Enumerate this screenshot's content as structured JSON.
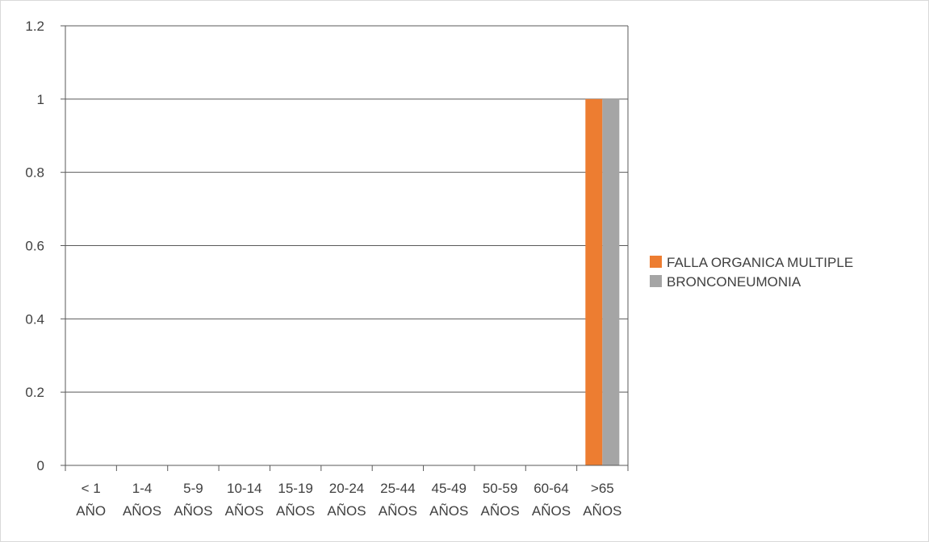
{
  "chart_data": {
    "type": "bar",
    "categories": [
      [
        "< 1",
        "AÑO"
      ],
      [
        "1-4",
        "AÑOS"
      ],
      [
        "5-9",
        "AÑOS"
      ],
      [
        "10-14",
        "AÑOS"
      ],
      [
        "15-19",
        "AÑOS"
      ],
      [
        "20-24",
        "AÑOS"
      ],
      [
        "25-44",
        "AÑOS"
      ],
      [
        "45-49",
        "AÑOS"
      ],
      [
        "50-59",
        "AÑOS"
      ],
      [
        "60-64",
        "AÑOS"
      ],
      [
        ">65",
        "AÑOS"
      ]
    ],
    "series": [
      {
        "name": "FALLA ORGANICA MULTIPLE",
        "color": "#ed7d31",
        "values": [
          0,
          0,
          0,
          0,
          0,
          0,
          0,
          0,
          0,
          0,
          1
        ]
      },
      {
        "name": "BRONCONEUMONIA",
        "color": "#a5a5a5",
        "values": [
          0,
          0,
          0,
          0,
          0,
          0,
          0,
          0,
          0,
          0,
          1
        ]
      }
    ],
    "y_ticks": [
      "0",
      "0.2",
      "0.4",
      "0.6",
      "0.8",
      "1",
      "1.2"
    ],
    "ylim": [
      0,
      1.2
    ],
    "grid": true,
    "legend_position": "right"
  }
}
